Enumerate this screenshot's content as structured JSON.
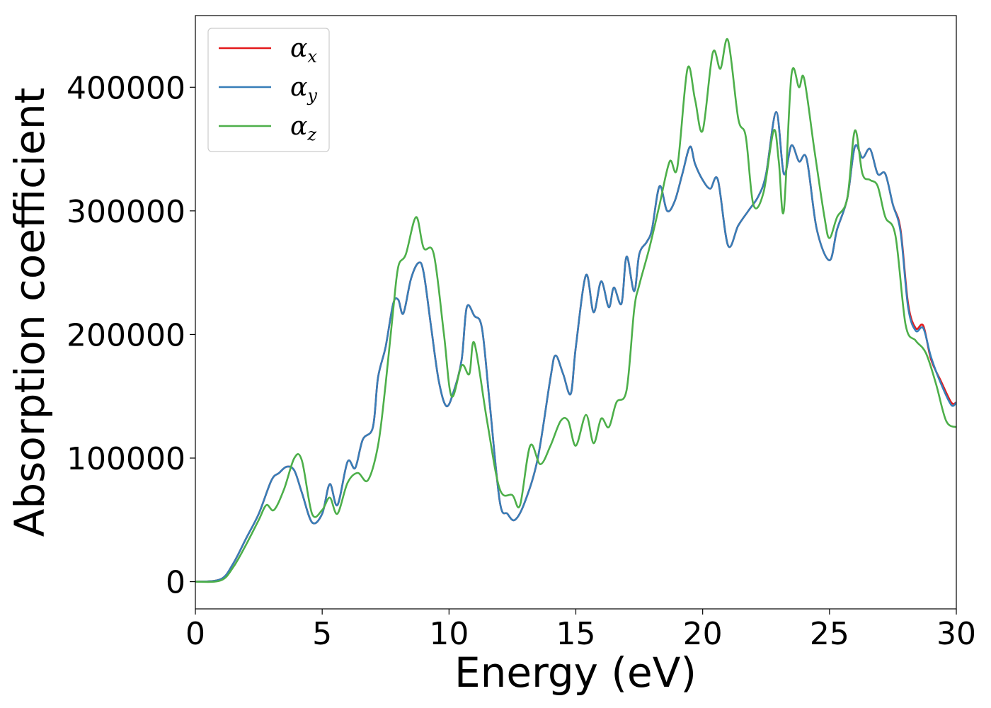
{
  "chart_data": {
    "type": "line",
    "xlabel": "Energy (eV)",
    "ylabel": "Absorption coefficient",
    "xlim": [
      0,
      30
    ],
    "ylim": [
      -22000,
      458000
    ],
    "xticks": [
      0,
      5,
      10,
      15,
      20,
      25,
      30
    ],
    "yticks": [
      0,
      100000,
      200000,
      300000,
      400000
    ],
    "grid": false,
    "legend_position": "top-left",
    "series": [
      {
        "name": "αx",
        "symbol": "α",
        "subscript": "x",
        "color": "#e41a1c",
        "x": [
          0,
          1,
          1.5,
          2,
          2.5,
          3,
          3.3,
          3.6,
          3.9,
          4.2,
          4.6,
          5.0,
          5.3,
          5.6,
          6.0,
          6.3,
          6.6,
          7.0,
          7.2,
          7.5,
          7.8,
          8.0,
          8.2,
          8.5,
          8.8,
          9.0,
          9.3,
          9.6,
          9.9,
          10.2,
          10.5,
          10.7,
          11.0,
          11.3,
          11.6,
          12.0,
          12.3,
          12.6,
          13.0,
          13.5,
          14.0,
          14.2,
          14.5,
          14.8,
          15.0,
          15.4,
          15.7,
          16.0,
          16.3,
          16.5,
          16.8,
          17.0,
          17.3,
          17.5,
          17.8,
          18.0,
          18.3,
          18.6,
          18.9,
          19.2,
          19.5,
          19.7,
          20.0,
          20.3,
          20.6,
          21.0,
          21.4,
          21.8,
          22.2,
          22.5,
          22.9,
          23.2,
          23.5,
          23.8,
          24.1,
          24.5,
          25.0,
          25.3,
          25.7,
          26.0,
          26.3,
          26.6,
          26.9,
          27.2,
          27.5,
          27.8,
          28.1,
          28.4,
          28.7,
          29.0,
          29.4,
          29.8,
          30.0
        ],
        "y": [
          0,
          2000,
          15000,
          35000,
          55000,
          82000,
          88000,
          93000,
          90000,
          72000,
          48000,
          55000,
          79000,
          62000,
          97000,
          92000,
          115000,
          125000,
          165000,
          190000,
          225000,
          228000,
          217000,
          245000,
          258000,
          250000,
          205000,
          162000,
          142000,
          155000,
          180000,
          222000,
          215000,
          205000,
          145000,
          65000,
          55000,
          50000,
          65000,
          100000,
          165000,
          183000,
          168000,
          152000,
          190000,
          248000,
          218000,
          243000,
          222000,
          238000,
          225000,
          263000,
          235000,
          265000,
          275000,
          285000,
          320000,
          300000,
          308000,
          330000,
          352000,
          338000,
          325000,
          318000,
          325000,
          272000,
          288000,
          300000,
          312000,
          330000,
          380000,
          330000,
          353000,
          340000,
          342000,
          285000,
          260000,
          285000,
          310000,
          352000,
          343000,
          350000,
          330000,
          330000,
          305000,
          285000,
          225000,
          205000,
          207000,
          180000,
          162000,
          145000,
          145000
        ]
      },
      {
        "name": "αy",
        "symbol": "α",
        "subscript": "y",
        "color": "#377eb8",
        "x": [
          0,
          1,
          1.5,
          2,
          2.5,
          3,
          3.3,
          3.6,
          3.9,
          4.2,
          4.6,
          5.0,
          5.3,
          5.6,
          6.0,
          6.3,
          6.6,
          7.0,
          7.2,
          7.5,
          7.8,
          8.0,
          8.2,
          8.5,
          8.8,
          9.0,
          9.3,
          9.6,
          9.9,
          10.2,
          10.5,
          10.7,
          11.0,
          11.3,
          11.6,
          12.0,
          12.3,
          12.6,
          13.0,
          13.5,
          14.0,
          14.2,
          14.5,
          14.8,
          15.0,
          15.4,
          15.7,
          16.0,
          16.3,
          16.5,
          16.8,
          17.0,
          17.3,
          17.5,
          17.8,
          18.0,
          18.3,
          18.6,
          18.9,
          19.2,
          19.5,
          19.7,
          20.0,
          20.3,
          20.6,
          21.0,
          21.4,
          21.8,
          22.2,
          22.5,
          22.9,
          23.2,
          23.5,
          23.8,
          24.1,
          24.5,
          25.0,
          25.3,
          25.7,
          26.0,
          26.3,
          26.6,
          26.9,
          27.2,
          27.5,
          27.8,
          28.1,
          28.4,
          28.7,
          29.0,
          29.4,
          29.8,
          30.0
        ],
        "y": [
          0,
          2000,
          15000,
          35000,
          55000,
          82000,
          88000,
          93000,
          90000,
          72000,
          48000,
          55000,
          79000,
          62000,
          97000,
          92000,
          115000,
          125000,
          165000,
          190000,
          225000,
          228000,
          217000,
          245000,
          258000,
          250000,
          205000,
          162000,
          142000,
          155000,
          180000,
          222000,
          215000,
          205000,
          145000,
          65000,
          55000,
          50000,
          65000,
          100000,
          165000,
          183000,
          168000,
          152000,
          190000,
          248000,
          218000,
          243000,
          222000,
          238000,
          225000,
          263000,
          235000,
          265000,
          275000,
          285000,
          320000,
          300000,
          308000,
          330000,
          352000,
          338000,
          325000,
          318000,
          325000,
          272000,
          288000,
          300000,
          312000,
          330000,
          380000,
          330000,
          353000,
          340000,
          342000,
          285000,
          260000,
          285000,
          310000,
          352000,
          343000,
          350000,
          330000,
          330000,
          305000,
          283000,
          222000,
          203000,
          205000,
          182000,
          160000,
          143000,
          145000
        ]
      },
      {
        "name": "αz",
        "symbol": "α",
        "subscript": "z",
        "color": "#4daf4a",
        "x": [
          0,
          1,
          1.5,
          2,
          2.5,
          2.8,
          3.1,
          3.5,
          3.9,
          4.2,
          4.6,
          5.0,
          5.3,
          5.6,
          6.0,
          6.4,
          6.8,
          7.2,
          7.5,
          7.8,
          8.0,
          8.3,
          8.7,
          9.0,
          9.4,
          9.8,
          10.1,
          10.5,
          10.8,
          11.0,
          11.5,
          12.0,
          12.5,
          12.8,
          13.2,
          13.6,
          14.0,
          14.4,
          14.7,
          15.0,
          15.4,
          15.7,
          16.0,
          16.3,
          16.6,
          17.0,
          17.3,
          17.5,
          17.9,
          18.3,
          18.7,
          19.0,
          19.4,
          19.7,
          20.0,
          20.4,
          20.7,
          21.0,
          21.4,
          21.7,
          22.0,
          22.4,
          22.8,
          23.0,
          23.2,
          23.5,
          23.8,
          24.0,
          24.4,
          24.8,
          25.0,
          25.3,
          25.7,
          26.0,
          26.3,
          26.6,
          26.9,
          27.2,
          27.6,
          28.0,
          28.4,
          28.8,
          29.2,
          29.6,
          30.0
        ],
        "y": [
          0,
          1000,
          12000,
          30000,
          50000,
          62000,
          58000,
          75000,
          100000,
          98000,
          55000,
          58000,
          68000,
          55000,
          80000,
          88000,
          82000,
          110000,
          160000,
          220000,
          255000,
          265000,
          295000,
          270000,
          265000,
          200000,
          150000,
          175000,
          168000,
          193000,
          130000,
          75000,
          70000,
          62000,
          110000,
          95000,
          110000,
          130000,
          130000,
          110000,
          135000,
          112000,
          132000,
          125000,
          145000,
          155000,
          220000,
          240000,
          270000,
          305000,
          340000,
          335000,
          415000,
          390000,
          365000,
          428000,
          415000,
          438000,
          375000,
          360000,
          305000,
          315000,
          365000,
          340000,
          300000,
          410000,
          400000,
          407000,
          350000,
          295000,
          278000,
          295000,
          310000,
          365000,
          330000,
          325000,
          320000,
          295000,
          280000,
          208000,
          195000,
          185000,
          160000,
          130000,
          125000
        ]
      }
    ]
  }
}
